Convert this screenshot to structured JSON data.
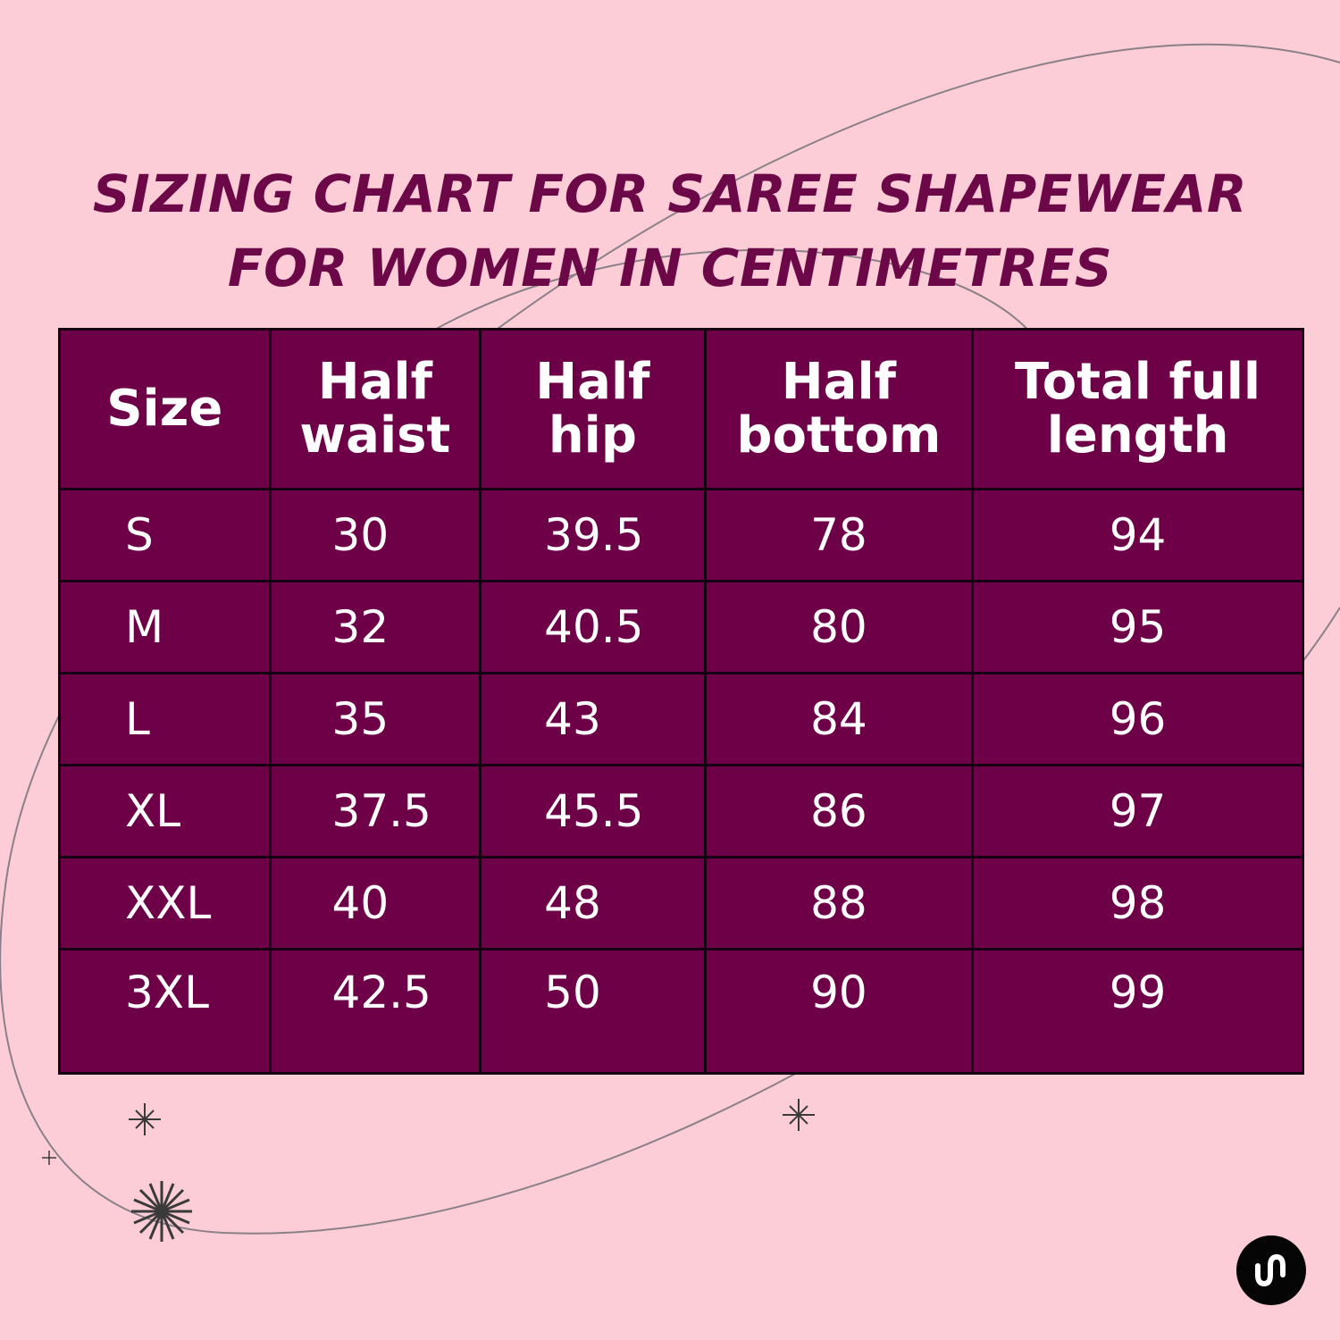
{
  "title": {
    "line1": "SIZING CHART FOR SAREE SHAPEWEAR",
    "line2": "FOR WOMEN IN CENTIMETRES"
  },
  "table": {
    "headers": {
      "size": "Size",
      "half_waist": [
        "Half",
        "waist"
      ],
      "half_hip": [
        "Half",
        "hip"
      ],
      "half_bottom": [
        "Half",
        "bottom"
      ],
      "total_full_length": [
        "Total full",
        "length"
      ]
    },
    "rows": [
      {
        "size": "S",
        "waist": "30",
        "hip": "39.5",
        "bottom": "78",
        "length": "94"
      },
      {
        "size": "M",
        "waist": "32",
        "hip": "40.5",
        "bottom": "80",
        "length": "95"
      },
      {
        "size": "L",
        "waist": "35",
        "hip": "43",
        "bottom": "84",
        "length": "96"
      },
      {
        "size": "XL",
        "waist": "37.5",
        "hip": "45.5",
        "bottom": "86",
        "length": "97"
      },
      {
        "size": "XXL",
        "waist": "40",
        "hip": "48",
        "bottom": "88",
        "length": "98"
      },
      {
        "size": "3XL",
        "waist": "42.5",
        "hip": "50",
        "bottom": "90",
        "length": "99"
      }
    ]
  },
  "decorations": {
    "sparkles": [
      "sparkle-icon",
      "sparkle-icon",
      "sparkle-icon",
      "starburst-icon"
    ],
    "orbit_lines": [
      "orbit-line",
      "orbit-line"
    ],
    "logo": "brand-logo-icon"
  },
  "colors": {
    "background": "#fccdd7",
    "title": "#6d0848",
    "table_fill": "#6e0048",
    "table_border": "#140010",
    "table_text": "#ffffff",
    "logo": "#050505"
  }
}
